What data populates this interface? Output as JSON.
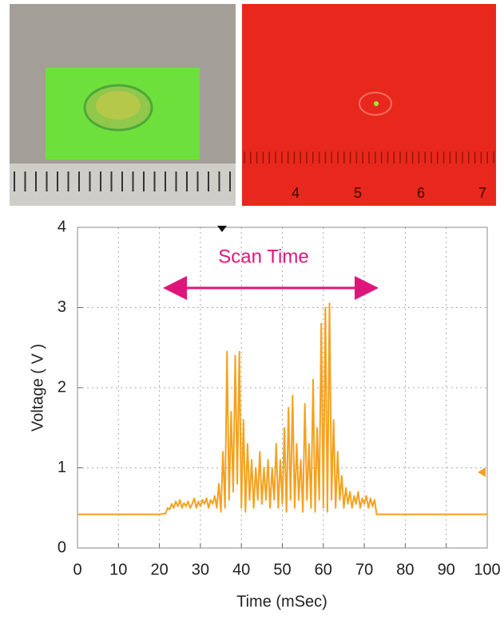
{
  "photos": {
    "ruler_labels": [
      4,
      5,
      6,
      7
    ]
  },
  "chart_data": {
    "type": "line",
    "xlabel": "Time (mSec)",
    "ylabel": "Voltage ( V )",
    "annotation": "Scan Time",
    "xlim": [
      0,
      100
    ],
    "ylim": [
      0,
      4
    ],
    "xticks": [
      0,
      10,
      20,
      30,
      40,
      50,
      60,
      70,
      80,
      90,
      100
    ],
    "yticks": [
      0,
      1,
      2,
      3,
      4
    ],
    "grid": true,
    "series": [
      {
        "color": "#f5a11e",
        "x": [
          0,
          5,
          10,
          15,
          20,
          21.5,
          22,
          22.5,
          23,
          23.5,
          24,
          24.5,
          25,
          25.5,
          26,
          26.5,
          27,
          27.5,
          28,
          28.5,
          29,
          29.5,
          30,
          30.5,
          31,
          31.5,
          32,
          32.5,
          33,
          33.5,
          34,
          34.5,
          35,
          35.5,
          36,
          36.5,
          37,
          37.5,
          38,
          38.5,
          39,
          39.5,
          40,
          40.5,
          41,
          41.5,
          42,
          42.5,
          43,
          43.5,
          44,
          44.5,
          45,
          45.5,
          46,
          46.5,
          47,
          47.5,
          48,
          48.5,
          49,
          49.5,
          50,
          50.5,
          51,
          51.5,
          52,
          52.5,
          53,
          53.5,
          54,
          54.5,
          55,
          55.5,
          56,
          56.5,
          57,
          57.5,
          58,
          58.5,
          59,
          59.5,
          60,
          60.5,
          61,
          61.5,
          62,
          62.5,
          63,
          63.5,
          64,
          64.5,
          65,
          65.5,
          66,
          66.5,
          67,
          67.5,
          68,
          68.5,
          69,
          69.5,
          70,
          70.5,
          71,
          71.5,
          72,
          72.5,
          73,
          74,
          80,
          90,
          100
        ],
        "values": [
          0.42,
          0.42,
          0.42,
          0.42,
          0.42,
          0.43,
          0.5,
          0.48,
          0.55,
          0.5,
          0.58,
          0.52,
          0.6,
          0.5,
          0.56,
          0.52,
          0.58,
          0.5,
          0.55,
          0.62,
          0.5,
          0.58,
          0.52,
          0.6,
          0.55,
          0.62,
          0.5,
          0.6,
          0.55,
          0.65,
          0.5,
          0.8,
          0.45,
          1.2,
          0.5,
          2.45,
          0.6,
          1.7,
          0.7,
          2.4,
          0.8,
          2.45,
          0.5,
          1.6,
          0.45,
          1.3,
          0.6,
          1.1,
          0.5,
          1.0,
          0.6,
          1.2,
          0.55,
          1.0,
          0.6,
          1.1,
          0.5,
          1.0,
          0.6,
          1.3,
          0.5,
          1.1,
          0.55,
          1.5,
          0.45,
          1.75,
          0.6,
          1.9,
          0.5,
          1.3,
          0.6,
          1.1,
          0.45,
          1.8,
          0.6,
          1.3,
          0.5,
          2.1,
          0.45,
          1.5,
          0.6,
          2.8,
          0.5,
          3.0,
          0.45,
          3.05,
          0.6,
          1.6,
          0.5,
          1.2,
          0.6,
          0.9,
          0.5,
          0.75,
          0.55,
          0.7,
          0.5,
          0.65,
          0.55,
          0.7,
          0.5,
          0.62,
          0.55,
          0.65,
          0.5,
          0.62,
          0.52,
          0.6,
          0.42,
          0.42,
          0.42,
          0.42,
          0.42
        ]
      }
    ]
  }
}
